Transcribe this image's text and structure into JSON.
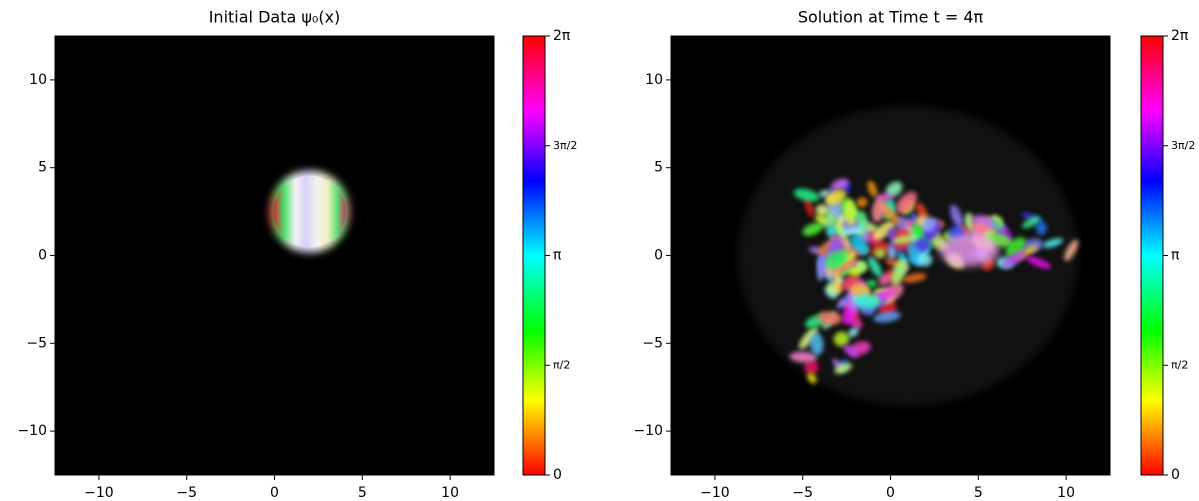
{
  "chart_data": [
    {
      "type": "image",
      "title": "Initial Data ψ₀(x)",
      "xlim": [
        -12.5,
        12.5
      ],
      "ylim": [
        -12.5,
        12.5
      ],
      "xticks": [
        {
          "value": -10,
          "label": "−10"
        },
        {
          "value": -5,
          "label": "−5"
        },
        0,
        5,
        10
      ],
      "yticks": [
        {
          "value": -10,
          "label": "−10"
        },
        {
          "value": -5,
          "label": "−5"
        },
        0,
        5,
        10
      ],
      "colorbar_lim": [
        0,
        6.2832
      ],
      "colorbar_ticks": [
        0,
        {
          "value": 1.5708,
          "label": "π/2"
        },
        {
          "value": 3.1416,
          "label": "π"
        },
        {
          "value": 4.7124,
          "label": "3π/2"
        },
        {
          "value": 6.2832,
          "label": "2π"
        }
      ]
    },
    {
      "type": "image",
      "title": "Solution at Time t = 4π",
      "xlim": [
        -12.5,
        12.5
      ],
      "ylim": [
        -12.5,
        12.5
      ],
      "xticks": [
        {
          "value": -10,
          "label": "−10"
        },
        {
          "value": -5,
          "label": "−5"
        },
        0,
        5,
        10
      ],
      "yticks": [
        {
          "value": -10,
          "label": "−10"
        },
        {
          "value": -5,
          "label": "−5"
        },
        0,
        5,
        10
      ],
      "colorbar_lim": [
        0,
        6.2832
      ],
      "colorbar_ticks": [
        0,
        {
          "value": 1.5708,
          "label": "π/2"
        },
        {
          "value": 3.1416,
          "label": "π"
        },
        {
          "value": 4.7124,
          "label": "3π/2"
        },
        {
          "value": 6.2832,
          "label": "2π"
        }
      ]
    }
  ]
}
